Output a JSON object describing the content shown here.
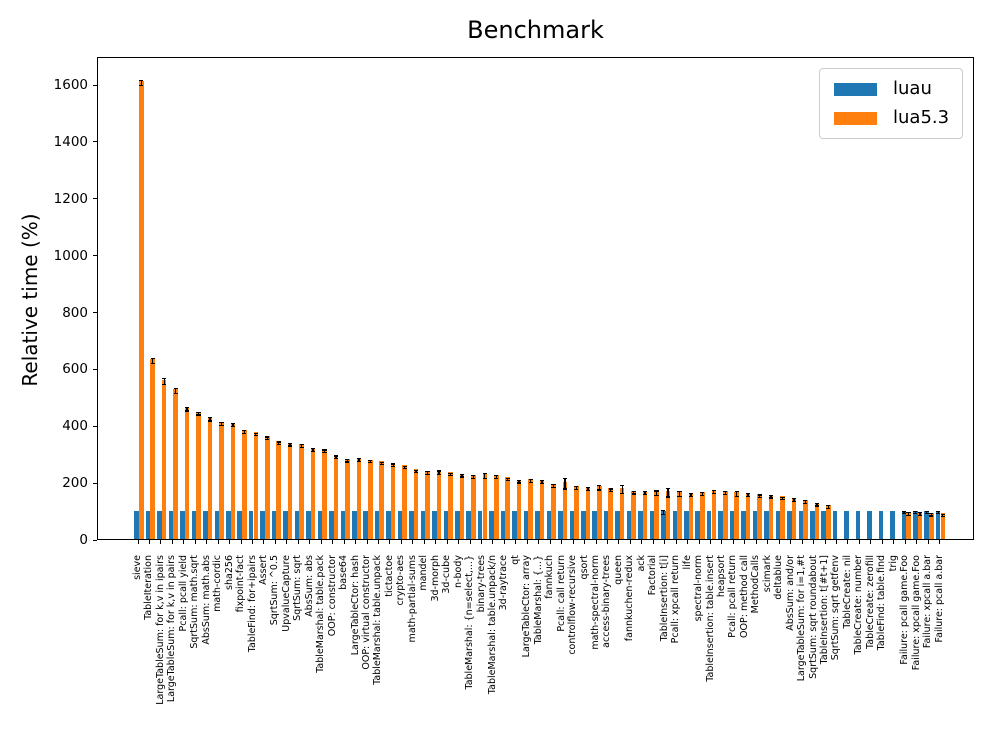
{
  "title": "Benchmark",
  "ylabel": "Relative time (%)",
  "legend": {
    "position": "upper right",
    "items": [
      {
        "label": "luau",
        "color": "#1f77b4"
      },
      {
        "label": "lua5.3",
        "color": "#ff7f0e"
      }
    ]
  },
  "colors": {
    "luau_bar": "#1f77b4",
    "lua53_bar": "#ff7f0e",
    "error_bar": "#000000",
    "axis": "#000000",
    "background": "#ffffff"
  },
  "chart_data": {
    "type": "bar",
    "title": "Benchmark",
    "xlabel": "",
    "ylabel": "Relative time (%)",
    "ylim": [
      0,
      1699
    ],
    "yticks": [
      0,
      200,
      400,
      600,
      800,
      1000,
      1200,
      1400,
      1600
    ],
    "grid": false,
    "legend_position": "upper right",
    "bar_orientation": "vertical",
    "error_bars": true,
    "categories": [
      "sieve",
      "TableIteration",
      "LargeTableSum: for k,v in ipairs",
      "LargeTableSum: for k,v in pairs",
      "Pcall: pcall yield",
      "SqrtSum: math.sqrt",
      "AbsSum: math.abs",
      "math-cordic",
      "sha256",
      "fixpoint-fact",
      "TableFind: for+ipairs",
      "Assert",
      "SqrtSum: ^0.5",
      "UpvalueCapture",
      "SqrtSum: sqrt",
      "AbsSum: abs",
      "TableMarshal: table.pack",
      "OOP: constructor",
      "base64",
      "LargeTableCtor: hash",
      "OOP: virtual constructor",
      "TableMarshal: table.unpack",
      "tictactoe",
      "crypto-aes",
      "math-partial-sums",
      "mandel",
      "3d-morph",
      "3d-cube",
      "n-body",
      "TableMarshal: {n=select,...}",
      "binary-trees",
      "TableMarshal: table.unpack/n",
      "3d-raytrace",
      "qt",
      "LargeTableCtor: array",
      "TableMarshal: {...}",
      "fannkuch",
      "Pcall: call return",
      "controlflow-recursive",
      "qsort",
      "math-spectral-norm",
      "access-binary-trees",
      "queen",
      "fannkuchen-redux",
      "ack",
      "Factorial",
      "TableInsertion: t[i]",
      "Pcall: xpcall return",
      "life",
      "spectral-norm",
      "TableInsertion: table.insert",
      "heapsort",
      "Pcall: pcall return",
      "OOP: method call",
      "MethodCalls",
      "scimark",
      "deltablue",
      "AbsSum: and/or",
      "LargeTableSum: for i=1,#t",
      "SqrtSum: sqrt roundabout",
      "TableInsertion: t[#t+1]",
      "SqrtSum: sqrt getfenv",
      "TableCreate: nil",
      "TableCreate: number",
      "TableCreate: zerofill",
      "TableFind: table.find",
      "trig",
      "Failure: pcall game.Foo",
      "Failure: xpcall game.Foo",
      "Failure: xpcall a.bar",
      "Failure: pcall a.bar"
    ],
    "series": [
      {
        "name": "luau",
        "color": "#1f77b4",
        "values": [
          100,
          100,
          100,
          100,
          100,
          100,
          100,
          100,
          100,
          100,
          100,
          100,
          100,
          100,
          100,
          100,
          100,
          100,
          100,
          100,
          100,
          100,
          100,
          100,
          100,
          100,
          100,
          100,
          100,
          100,
          100,
          100,
          100,
          100,
          100,
          100,
          100,
          100,
          100,
          100,
          100,
          100,
          100,
          100,
          100,
          100,
          100,
          100,
          100,
          100,
          100,
          100,
          100,
          100,
          100,
          100,
          100,
          100,
          100,
          100,
          100,
          100,
          100,
          100,
          100,
          100,
          100,
          100,
          100,
          100,
          100
        ],
        "errors": [
          null,
          null,
          null,
          null,
          null,
          null,
          null,
          null,
          null,
          null,
          null,
          null,
          null,
          null,
          null,
          null,
          null,
          null,
          null,
          null,
          null,
          null,
          null,
          null,
          null,
          null,
          null,
          null,
          null,
          null,
          null,
          null,
          null,
          null,
          null,
          null,
          null,
          null,
          null,
          null,
          null,
          null,
          null,
          null,
          null,
          null,
          6,
          null,
          null,
          null,
          null,
          null,
          null,
          null,
          null,
          null,
          null,
          null,
          null,
          null,
          null,
          null,
          null,
          null,
          null,
          null,
          null,
          3,
          3,
          3,
          3
        ]
      },
      {
        "name": "lua5.3",
        "color": "#ff7f0e",
        "values": [
          1610,
          633,
          560,
          528,
          463,
          448,
          428,
          411,
          408,
          384,
          375,
          361,
          343,
          338,
          333,
          320,
          316,
          295,
          282,
          284,
          279,
          273,
          267,
          259,
          245,
          239,
          240,
          234,
          229,
          226,
          229,
          225,
          217,
          208,
          211,
          207,
          194,
          201,
          187,
          182,
          187,
          178,
          181,
          170,
          169,
          168,
          170,
          165,
          162,
          165,
          172,
          168,
          165,
          162,
          158,
          155,
          150,
          145,
          138,
          128,
          120,
          null,
          null,
          null,
          null,
          null,
          null,
          95,
          95,
          92,
          90
        ],
        "errors": [
          8,
          8,
          10,
          8,
          6,
          5,
          6,
          5,
          5,
          5,
          4,
          5,
          5,
          4,
          5,
          4,
          4,
          4,
          4,
          5,
          4,
          4,
          4,
          4,
          4,
          4,
          6,
          4,
          4,
          5,
          8,
          5,
          4,
          4,
          5,
          5,
          5,
          18,
          6,
          5,
          8,
          5,
          15,
          5,
          5,
          8,
          15,
          8,
          5,
          6,
          6,
          5,
          8,
          6,
          4,
          4,
          4,
          5,
          5,
          5,
          5,
          null,
          null,
          null,
          null,
          null,
          null,
          4,
          4,
          4,
          4
        ]
      }
    ]
  }
}
